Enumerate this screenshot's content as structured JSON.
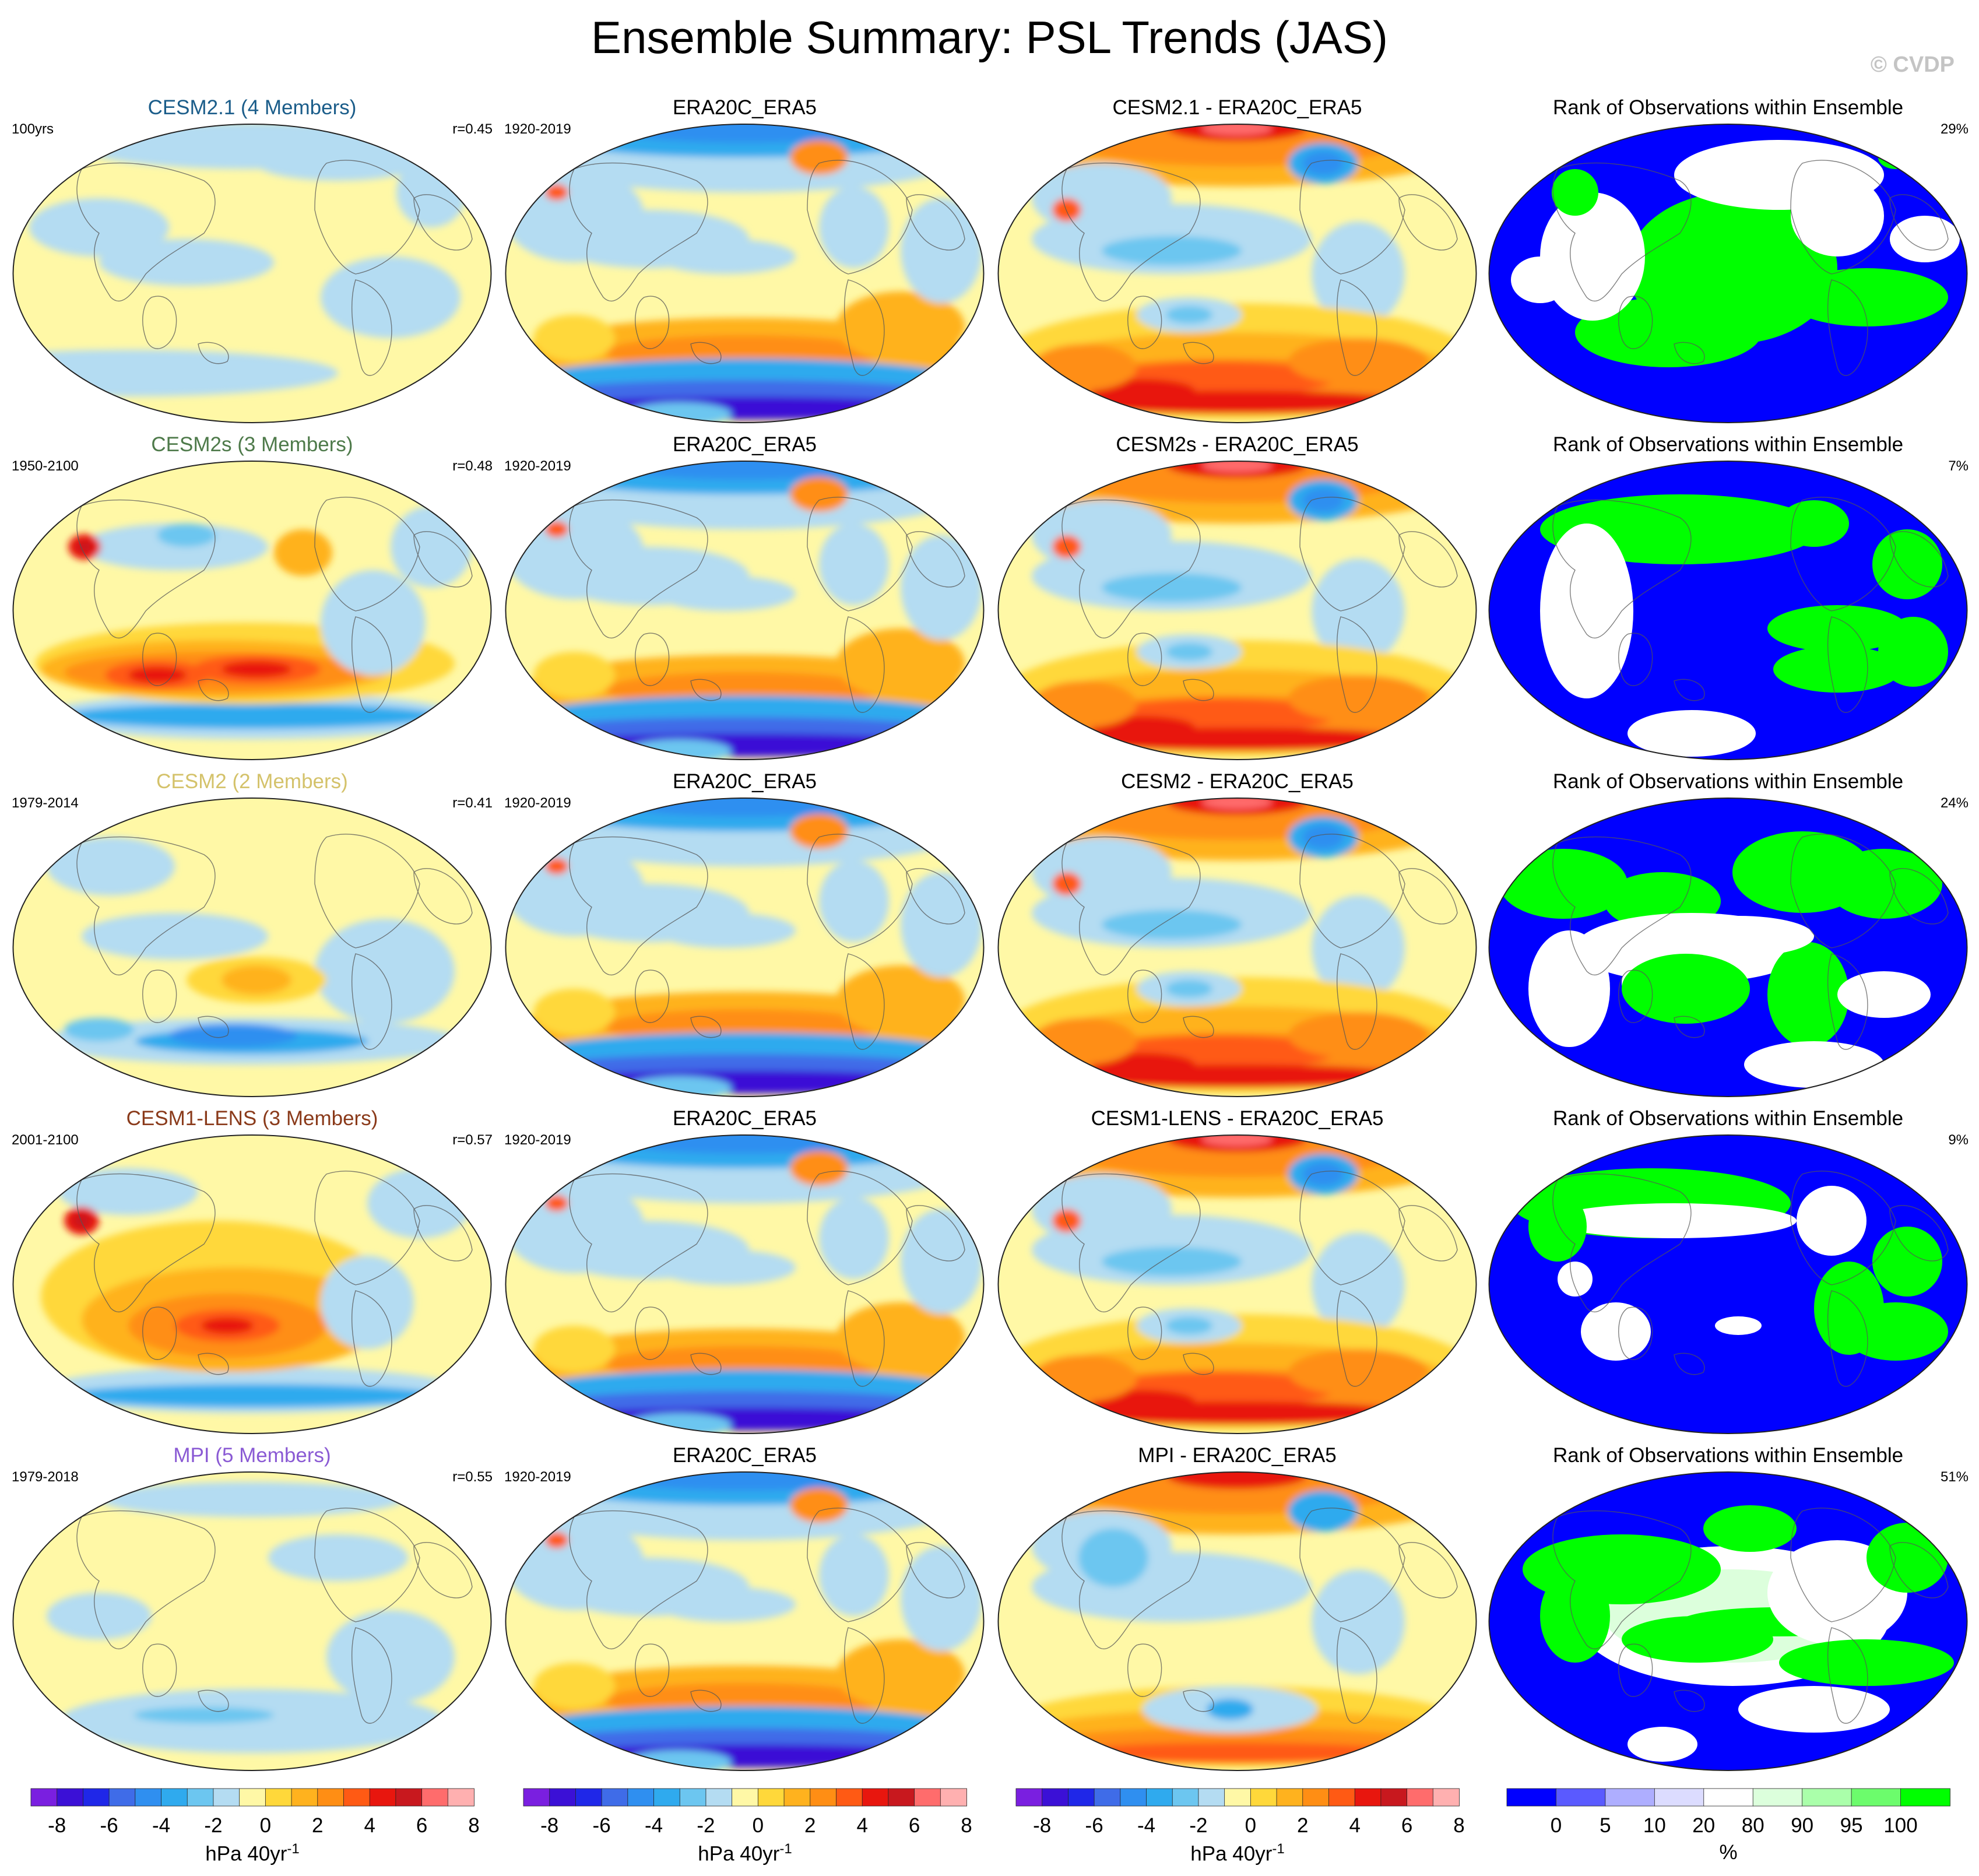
{
  "title": "Ensemble Summary: PSL Trends (JAS)",
  "watermark": "© CVDP",
  "colors": {
    "diverging": [
      "#7a1fe0",
      "#3b10d6",
      "#1f27e8",
      "#3f6ce8",
      "#2f8ff0",
      "#2faaee",
      "#6cc6f0",
      "#b4dcf2",
      "#fff8a6",
      "#ffd83a",
      "#ffb21e",
      "#ff8e14",
      "#ff5a14",
      "#e8160e",
      "#c8181e",
      "#ff6c6c",
      "#ffb0b0"
    ],
    "rank": [
      "#0000ff",
      "#5a5aff",
      "#aeaeff",
      "#dcdcff",
      "#ffffff",
      "#dcffdc",
      "#aaffaa",
      "#6cfc6c",
      "#00ff00"
    ],
    "coast": "#555555"
  },
  "rows": [
    {
      "model": {
        "title": "CESM2.1 (4 Members)",
        "title_color": "#1b5d8a",
        "period": "100yrs",
        "corr": "r=0.45",
        "pattern": "weak-a"
      },
      "obs": {
        "title": "ERA20C_ERA5",
        "period": "1920-2019",
        "pattern": "obs"
      },
      "diff": {
        "title": "CESM2.1 - ERA20C_ERA5",
        "pattern": "diff"
      },
      "rank": {
        "title": "Rank of Observations within Ensemble",
        "pct": "29%",
        "pattern": "rank-a"
      }
    },
    {
      "model": {
        "title": "CESM2s (3 Members)",
        "title_color": "#4e7a4a",
        "period": "1950-2100",
        "corr": "r=0.48",
        "pattern": "strong"
      },
      "obs": {
        "title": "ERA20C_ERA5",
        "period": "1920-2019",
        "pattern": "obs"
      },
      "diff": {
        "title": "CESM2s - ERA20C_ERA5",
        "pattern": "diff"
      },
      "rank": {
        "title": "Rank of Observations within Ensemble",
        "pct": "7%",
        "pattern": "rank-b"
      }
    },
    {
      "model": {
        "title": "CESM2 (2 Members)",
        "title_color": "#d4c26a",
        "period": "1979-2014",
        "corr": "r=0.41",
        "pattern": "mid"
      },
      "obs": {
        "title": "ERA20C_ERA5",
        "period": "1920-2019",
        "pattern": "obs"
      },
      "diff": {
        "title": "CESM2 - ERA20C_ERA5",
        "pattern": "diff"
      },
      "rank": {
        "title": "Rank of Observations within Ensemble",
        "pct": "24%",
        "pattern": "rank-c"
      }
    },
    {
      "model": {
        "title": "CESM1-LENS (3 Members)",
        "title_color": "#8a3a1a",
        "period": "2001-2100",
        "corr": "r=0.57",
        "pattern": "strong2"
      },
      "obs": {
        "title": "ERA20C_ERA5",
        "period": "1920-2019",
        "pattern": "obs"
      },
      "diff": {
        "title": "CESM1-LENS - ERA20C_ERA5",
        "pattern": "diff"
      },
      "rank": {
        "title": "Rank of Observations within Ensemble",
        "pct": "9%",
        "pattern": "rank-d"
      }
    },
    {
      "model": {
        "title": "MPI (5 Members)",
        "title_color": "#8a5ad4",
        "period": "1979-2018",
        "corr": "r=0.55",
        "pattern": "weak-b"
      },
      "obs": {
        "title": "ERA20C_ERA5",
        "period": "1920-2019",
        "pattern": "obs"
      },
      "diff": {
        "title": "MPI - ERA20C_ERA5",
        "pattern": "diff2"
      },
      "rank": {
        "title": "Rank of Observations within Ensemble",
        "pct": "51%",
        "pattern": "rank-e"
      }
    }
  ],
  "colorbars": [
    {
      "kind": "diverging",
      "ticks": [
        "-8",
        "-6",
        "-4",
        "-2",
        "0",
        "2",
        "4",
        "6",
        "8"
      ],
      "units": "hPa 40yr",
      "units_sup": "-1"
    },
    {
      "kind": "diverging",
      "ticks": [
        "-8",
        "-6",
        "-4",
        "-2",
        "0",
        "2",
        "4",
        "6",
        "8"
      ],
      "units": "hPa 40yr",
      "units_sup": "-1"
    },
    {
      "kind": "diverging",
      "ticks": [
        "-8",
        "-6",
        "-4",
        "-2",
        "0",
        "2",
        "4",
        "6",
        "8"
      ],
      "units": "hPa 40yr",
      "units_sup": "-1"
    },
    {
      "kind": "rank",
      "ticks": [
        "0",
        "5",
        "10",
        "20",
        "80",
        "90",
        "95",
        "100"
      ],
      "units": "%",
      "units_sup": ""
    }
  ]
}
